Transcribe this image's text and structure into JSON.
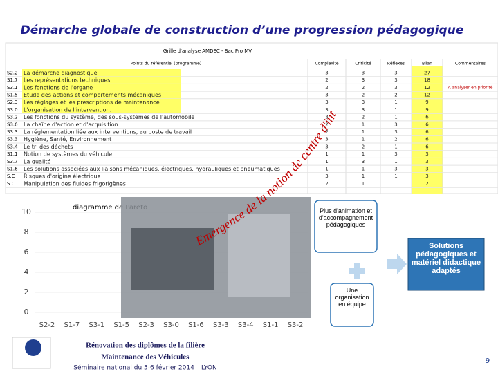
{
  "header": {
    "title": "Démarche globale  de construction d’une progression pédagogique"
  },
  "grid": {
    "title": "Grille d'analyse AMDEC - Bac Pro MV",
    "columns": [
      "Points du référentiel (programme)",
      "Complexité",
      "Criticité",
      "Réflexes",
      "Bilan",
      "Commentaires"
    ],
    "rows": [
      {
        "code": "S2.2",
        "text": "La démarche diagnostique",
        "values": [
          "3",
          "3",
          "3",
          "27"
        ]
      },
      {
        "code": "S1.7",
        "text": "Les représentations techniques",
        "values": [
          "2",
          "3",
          "3",
          "18"
        ]
      },
      {
        "code": "S3.1",
        "text": "Les fonctions de l'organe",
        "values": [
          "2",
          "2",
          "3",
          "12"
        ],
        "comment": "A analyser en priorité"
      },
      {
        "code": "S1.5",
        "text": "Etude des actions et comportements mécaniques",
        "values": [
          "3",
          "2",
          "2",
          "12"
        ]
      },
      {
        "code": "S2.3",
        "text": "Les réglages et les prescriptions de maintenance",
        "values": [
          "3",
          "3",
          "1",
          "9"
        ]
      },
      {
        "code": "S3.0",
        "text": "L'organisation de l'intervention.",
        "values": [
          "3",
          "3",
          "1",
          "9"
        ]
      },
      {
        "code": "S3.2",
        "text": "Les fonctions du système, des sous-systèmes de l'automobile",
        "values": [
          "3",
          "2",
          "1",
          "6"
        ]
      },
      {
        "code": "S3.6",
        "text": "La chaîne d'action et d'acquisition",
        "values": [
          "2",
          "1",
          "3",
          "6"
        ]
      },
      {
        "code": "S3.3",
        "text": "La réglementation liée aux interventions, au poste de travail",
        "values": [
          "2",
          "1",
          "3",
          "6"
        ]
      },
      {
        "code": "S3.3",
        "text": "Hygiène, Santé, Environnement",
        "values": [
          "3",
          "1",
          "2",
          "6"
        ]
      },
      {
        "code": "S3.4",
        "text": "Le tri des déchets",
        "values": [
          "3",
          "2",
          "1",
          "6"
        ]
      },
      {
        "code": "S1.1",
        "text": "Notion de systèmes du véhicule",
        "values": [
          "1",
          "1",
          "3",
          "3"
        ]
      },
      {
        "code": "S3.7",
        "text": "La qualité",
        "values": [
          "1",
          "3",
          "1",
          "3"
        ]
      },
      {
        "code": "S1.6",
        "text": "Les solutions associées aux liaisons mécaniques, électriques, hydrauliques et pneumatiques",
        "values": [
          "1",
          "1",
          "3",
          "3"
        ]
      },
      {
        "code": "S.C",
        "text": "Risques d'origine électrique",
        "values": [
          "3",
          "1",
          "1",
          "3"
        ]
      },
      {
        "code": "S.C",
        "text": "Manipulation des fluides frigorigènes",
        "values": [
          "2",
          "1",
          "1",
          "2"
        ]
      }
    ]
  },
  "pareto": {
    "title": "diagramme de Pareto",
    "ylim": [
      0,
      10
    ],
    "yticks": [
      0,
      2,
      4,
      6,
      8,
      10
    ],
    "categories": [
      "S2-2",
      "S1-7",
      "S3-1",
      "S1-5",
      "S2-3",
      "S3-0",
      "S1-6",
      "S3-3",
      "S3-4",
      "S1-1",
      "S3-2"
    ]
  },
  "arc_text": "Emergence de la notion de centre d'intérêt",
  "boxes": {
    "animation": "Plus d'animation et d'accompagnement pédagogiques",
    "solutions": "Solutions pédagogiques et matériel didactique adaptés",
    "organisation": "Une organisation en équipe"
  },
  "footer": {
    "line1": "Rénovation des diplômes de la filière",
    "line2": "Maintenance des Véhicules",
    "seminar": "Séminaire national du 5-6 février 2014 – LYON",
    "page": "9"
  }
}
